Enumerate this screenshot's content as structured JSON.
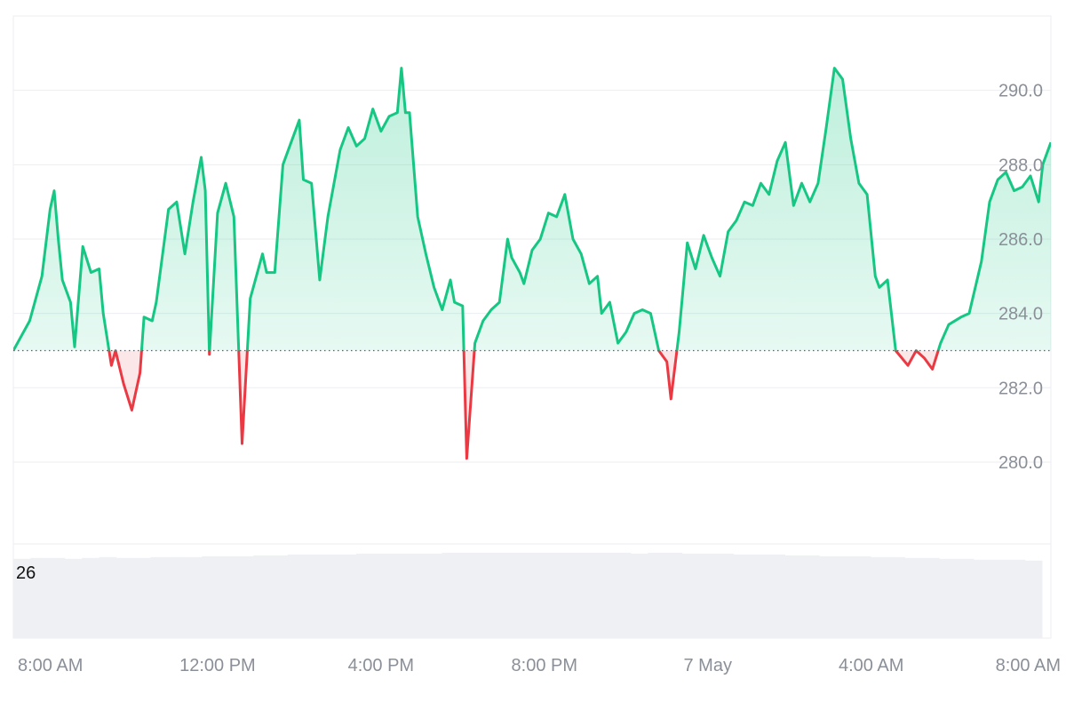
{
  "chart_data": {
    "type": "area",
    "baseline": 283.0,
    "ylim": [
      277.8,
      292.0
    ],
    "y_ticks": [
      280.0,
      282.0,
      284.0,
      286.0,
      288.0,
      290.0
    ],
    "y_tick_labels": [
      "280.0",
      "282.0",
      "284.0",
      "286.0",
      "288.0",
      "290.0"
    ],
    "x_range_hours": [
      7.0,
      32.4
    ],
    "x_ticks": [
      {
        "label": "8:00 AM",
        "hour": 8
      },
      {
        "label": "12:00 PM",
        "hour": 12
      },
      {
        "label": "4:00 PM",
        "hour": 16
      },
      {
        "label": "8:00 PM",
        "hour": 20
      },
      {
        "label": "7 May",
        "hour": 24
      },
      {
        "label": "4:00 AM",
        "hour": 28
      },
      {
        "label": "8:00 AM",
        "hour": 32
      }
    ],
    "series": [
      {
        "points": [
          [
            7.0,
            283.0
          ],
          [
            7.4,
            283.8
          ],
          [
            7.7,
            285.0
          ],
          [
            7.9,
            286.8
          ],
          [
            8.0,
            287.3
          ],
          [
            8.1,
            286.0
          ],
          [
            8.2,
            284.9
          ],
          [
            8.4,
            284.3
          ],
          [
            8.5,
            283.1
          ],
          [
            8.7,
            285.8
          ],
          [
            8.9,
            285.1
          ],
          [
            9.1,
            285.2
          ],
          [
            9.2,
            284.0
          ],
          [
            9.4,
            282.6
          ],
          [
            9.5,
            283.0
          ],
          [
            9.7,
            282.1
          ],
          [
            9.9,
            281.4
          ],
          [
            10.1,
            282.4
          ],
          [
            10.2,
            283.9
          ],
          [
            10.4,
            283.8
          ],
          [
            10.5,
            284.3
          ],
          [
            10.8,
            286.8
          ],
          [
            11.0,
            287.0
          ],
          [
            11.2,
            285.6
          ],
          [
            11.4,
            287.0
          ],
          [
            11.6,
            288.2
          ],
          [
            11.7,
            287.3
          ],
          [
            11.8,
            282.9
          ],
          [
            12.0,
            286.7
          ],
          [
            12.2,
            287.5
          ],
          [
            12.4,
            286.6
          ],
          [
            12.6,
            280.5
          ],
          [
            12.8,
            284.4
          ],
          [
            13.1,
            285.6
          ],
          [
            13.2,
            285.1
          ],
          [
            13.4,
            285.1
          ],
          [
            13.6,
            288.0
          ],
          [
            13.8,
            288.6
          ],
          [
            14.0,
            289.2
          ],
          [
            14.1,
            287.6
          ],
          [
            14.3,
            287.5
          ],
          [
            14.5,
            284.9
          ],
          [
            14.7,
            286.6
          ],
          [
            15.0,
            288.4
          ],
          [
            15.2,
            289.0
          ],
          [
            15.4,
            288.5
          ],
          [
            15.6,
            288.7
          ],
          [
            15.8,
            289.5
          ],
          [
            16.0,
            288.9
          ],
          [
            16.2,
            289.3
          ],
          [
            16.4,
            289.4
          ],
          [
            16.5,
            290.6
          ],
          [
            16.6,
            289.4
          ],
          [
            16.7,
            289.4
          ],
          [
            16.9,
            286.6
          ],
          [
            17.1,
            285.6
          ],
          [
            17.3,
            284.7
          ],
          [
            17.5,
            284.1
          ],
          [
            17.7,
            284.9
          ],
          [
            17.8,
            284.3
          ],
          [
            18.0,
            284.2
          ],
          [
            18.1,
            280.1
          ],
          [
            18.3,
            283.2
          ],
          [
            18.5,
            283.8
          ],
          [
            18.7,
            284.1
          ],
          [
            18.9,
            284.3
          ],
          [
            19.1,
            286.0
          ],
          [
            19.2,
            285.5
          ],
          [
            19.4,
            285.1
          ],
          [
            19.5,
            284.8
          ],
          [
            19.7,
            285.7
          ],
          [
            19.9,
            286.0
          ],
          [
            20.1,
            286.7
          ],
          [
            20.3,
            286.6
          ],
          [
            20.5,
            287.2
          ],
          [
            20.7,
            286.0
          ],
          [
            20.9,
            285.6
          ],
          [
            21.1,
            284.8
          ],
          [
            21.3,
            285.0
          ],
          [
            21.4,
            284.0
          ],
          [
            21.6,
            284.3
          ],
          [
            21.8,
            283.2
          ],
          [
            22.0,
            283.5
          ],
          [
            22.2,
            284.0
          ],
          [
            22.4,
            284.1
          ],
          [
            22.6,
            284.0
          ],
          [
            22.8,
            283.0
          ],
          [
            23.0,
            282.7
          ],
          [
            23.1,
            281.7
          ],
          [
            23.3,
            283.5
          ],
          [
            23.5,
            285.9
          ],
          [
            23.7,
            285.2
          ],
          [
            23.9,
            286.1
          ],
          [
            24.1,
            285.5
          ],
          [
            24.3,
            285.0
          ],
          [
            24.5,
            286.2
          ],
          [
            24.7,
            286.5
          ],
          [
            24.9,
            287.0
          ],
          [
            25.1,
            286.9
          ],
          [
            25.3,
            287.5
          ],
          [
            25.5,
            287.2
          ],
          [
            25.7,
            288.1
          ],
          [
            25.9,
            288.6
          ],
          [
            26.1,
            286.9
          ],
          [
            26.3,
            287.5
          ],
          [
            26.5,
            287.0
          ],
          [
            26.7,
            287.5
          ],
          [
            26.9,
            289.0
          ],
          [
            27.1,
            290.6
          ],
          [
            27.3,
            290.3
          ],
          [
            27.5,
            288.7
          ],
          [
            27.7,
            287.5
          ],
          [
            27.9,
            287.2
          ],
          [
            28.1,
            285.0
          ],
          [
            28.2,
            284.7
          ],
          [
            28.4,
            284.9
          ],
          [
            28.6,
            283.0
          ],
          [
            28.9,
            282.6
          ],
          [
            29.1,
            283.0
          ],
          [
            29.3,
            282.8
          ],
          [
            29.5,
            282.5
          ],
          [
            29.7,
            283.2
          ],
          [
            29.9,
            283.7
          ],
          [
            30.2,
            283.9
          ],
          [
            30.4,
            284.0
          ],
          [
            30.7,
            285.4
          ],
          [
            30.9,
            287.0
          ],
          [
            31.1,
            287.6
          ],
          [
            31.3,
            287.8
          ],
          [
            31.5,
            287.3
          ],
          [
            31.7,
            287.4
          ],
          [
            31.9,
            287.7
          ],
          [
            32.1,
            287.0
          ],
          [
            32.2,
            288.0
          ],
          [
            32.4,
            288.6
          ]
        ]
      }
    ],
    "volume": {
      "label": "26",
      "bars": [
        0.91,
        0.92,
        0.92,
        0.91,
        0.92,
        0.93,
        0.92,
        0.92,
        0.93,
        0.93,
        0.93,
        0.94,
        0.94,
        0.94,
        0.95,
        0.95,
        0.96,
        0.96,
        0.96,
        0.96,
        0.97,
        0.97,
        0.97,
        0.97,
        0.97,
        0.98,
        0.98,
        0.98,
        0.98,
        0.98,
        0.98,
        0.98,
        0.98,
        0.98,
        0.98,
        0.98,
        0.97,
        0.98,
        0.98,
        0.97,
        0.97,
        0.97,
        0.96,
        0.96,
        0.96,
        0.95,
        0.95,
        0.94,
        0.94,
        0.94,
        0.93,
        0.93,
        0.92,
        0.92,
        0.91,
        0.91,
        0.9,
        0.9,
        0.9,
        0.89
      ]
    },
    "colors": {
      "up_line": "#16c784",
      "up_fill_top": "#16c784",
      "down_line": "#ea3943",
      "down_fill": "#ea3943",
      "grid": "#eceef2",
      "baseline": "#5a5f68",
      "volume": "#eef0f4",
      "axis_text": "#8a8f98"
    }
  }
}
